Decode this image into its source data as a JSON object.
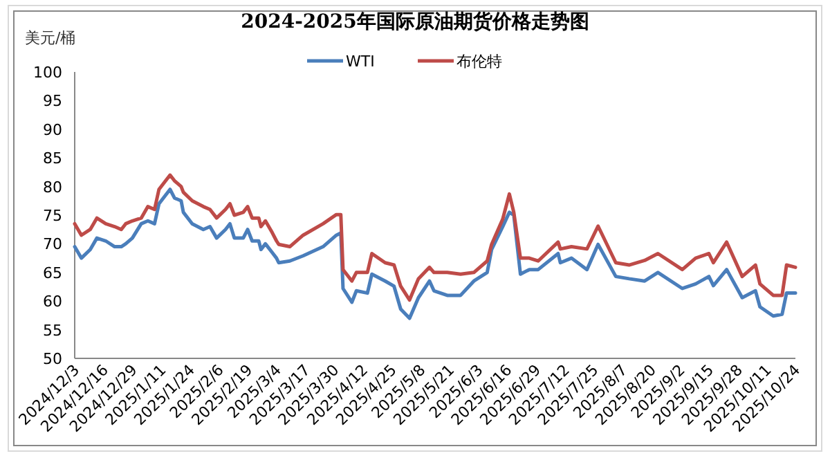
{
  "chart_data": {
    "type": "line",
    "title": "2024-2025年国际原油期货价格走势图",
    "ylabel": "美元/桶",
    "x": [
      "2024-12-03",
      "2024-12-06",
      "2024-12-10",
      "2024-12-13",
      "2024-12-17",
      "2024-12-21",
      "2024-12-24",
      "2024-12-26",
      "2024-12-29",
      "2025-01-02",
      "2025-01-05",
      "2025-01-08",
      "2025-01-10",
      "2025-01-13",
      "2025-01-15",
      "2025-01-17",
      "2025-01-20",
      "2025-01-21",
      "2025-01-25",
      "2025-01-30",
      "2025-02-02",
      "2025-02-05",
      "2025-02-09",
      "2025-02-11",
      "2025-02-13",
      "2025-02-17",
      "2025-02-19",
      "2025-02-21",
      "2025-02-24",
      "2025-02-25",
      "2025-02-27",
      "2025-03-02",
      "2025-03-04",
      "2025-03-05",
      "2025-03-10",
      "2025-03-16",
      "2025-03-25",
      "2025-03-31",
      "2025-04-02",
      "2025-04-03",
      "2025-04-07",
      "2025-04-09",
      "2025-04-14",
      "2025-04-16",
      "2025-04-22",
      "2025-04-26",
      "2025-04-29",
      "2025-05-03",
      "2025-05-07",
      "2025-05-12",
      "2025-05-14",
      "2025-05-20",
      "2025-05-26",
      "2025-06-01",
      "2025-06-07",
      "2025-06-09",
      "2025-06-14",
      "2025-06-17",
      "2025-06-19",
      "2025-06-22",
      "2025-06-26",
      "2025-06-30",
      "2025-07-09",
      "2025-07-10",
      "2025-07-15",
      "2025-07-22",
      "2025-07-27",
      "2025-08-04",
      "2025-08-10",
      "2025-08-17",
      "2025-08-23",
      "2025-09-03",
      "2025-09-09",
      "2025-09-15",
      "2025-09-17",
      "2025-09-23",
      "2025-09-30",
      "2025-10-06",
      "2025-10-08",
      "2025-10-14",
      "2025-10-18",
      "2025-10-20",
      "2025-10-24"
    ],
    "series": [
      {
        "name": "WTI",
        "color": "#4a7ebb",
        "values": [
          69.5,
          67.5,
          69,
          71,
          70.5,
          69.5,
          69.5,
          70,
          71,
          73.5,
          74,
          73.5,
          77,
          78.5,
          79.5,
          78,
          77.5,
          75.5,
          73.5,
          72.5,
          73,
          71,
          72.5,
          73.5,
          71,
          71,
          72.5,
          70.5,
          70.5,
          69,
          70,
          68.5,
          67.5,
          66.7,
          67,
          67.9,
          69.5,
          71.5,
          71.9,
          62.2,
          59.8,
          61.8,
          61.4,
          64.7,
          63.5,
          62.6,
          58.6,
          57,
          60.6,
          63.5,
          61.8,
          61,
          61,
          63.5,
          65,
          69,
          73,
          75.5,
          75,
          64.7,
          65.5,
          65.5,
          68.3,
          66.7,
          67.5,
          65.5,
          69.9,
          64.3,
          63.9,
          63.5,
          65,
          62.2,
          63,
          64.3,
          62.7,
          65.5,
          60.6,
          61.8,
          59,
          57.4,
          57.7,
          61.4,
          61.4
        ]
      },
      {
        "name": "布伦特",
        "color": "#be4b48",
        "values": [
          73.5,
          71.5,
          72.5,
          74.5,
          73.5,
          73,
          72.5,
          73.5,
          74,
          74.5,
          76.5,
          76,
          79.5,
          81,
          82,
          81,
          80,
          79,
          77.5,
          76.5,
          76,
          74.5,
          76,
          77,
          75,
          75.5,
          76.5,
          74.5,
          74.5,
          73,
          74,
          72,
          70.5,
          69.9,
          69.5,
          71.5,
          73.5,
          75.1,
          75.1,
          65.5,
          63.5,
          65,
          65,
          68.3,
          66.7,
          66.3,
          62.6,
          60.2,
          63.9,
          65.9,
          65,
          65,
          64.7,
          65,
          67,
          69.9,
          74.3,
          78.7,
          75.5,
          67.5,
          67.5,
          67,
          70.3,
          69.1,
          69.5,
          69.1,
          73.1,
          66.7,
          66.3,
          67.1,
          68.3,
          65.5,
          67.5,
          68.3,
          66.7,
          70.3,
          64.3,
          66.3,
          63,
          61,
          61,
          66.3,
          65.9
        ]
      }
    ],
    "xlim": [
      "2024-12-03",
      "2025-10-24"
    ],
    "xticks": [
      {
        "value": "2024-12-03",
        "label": "2024/12/3"
      },
      {
        "value": "2024-12-16",
        "label": "2024/12/16"
      },
      {
        "value": "2024-12-29",
        "label": "2024/12/29"
      },
      {
        "value": "2025-01-11",
        "label": "2025/1/11"
      },
      {
        "value": "2025-01-24",
        "label": "2025/1/24"
      },
      {
        "value": "2025-02-06",
        "label": "2025/2/6"
      },
      {
        "value": "2025-02-19",
        "label": "2025/2/19"
      },
      {
        "value": "2025-03-04",
        "label": "2025/3/4"
      },
      {
        "value": "2025-03-17",
        "label": "2025/3/17"
      },
      {
        "value": "2025-03-30",
        "label": "2025/3/30"
      },
      {
        "value": "2025-04-12",
        "label": "2025/4/12"
      },
      {
        "value": "2025-04-25",
        "label": "2025/4/25"
      },
      {
        "value": "2025-05-08",
        "label": "2025/5/8"
      },
      {
        "value": "2025-05-21",
        "label": "2025/5/21"
      },
      {
        "value": "2025-06-03",
        "label": "2025/6/3"
      },
      {
        "value": "2025-06-16",
        "label": "2025/6/16"
      },
      {
        "value": "2025-06-29",
        "label": "2025/6/29"
      },
      {
        "value": "2025-07-12",
        "label": "2025/7/12"
      },
      {
        "value": "2025-07-25",
        "label": "2025/7/25"
      },
      {
        "value": "2025-08-07",
        "label": "2025/8/7"
      },
      {
        "value": "2025-08-20",
        "label": "2025/8/20"
      },
      {
        "value": "2025-09-02",
        "label": "2025/9/2"
      },
      {
        "value": "2025-09-15",
        "label": "2025/9/15"
      },
      {
        "value": "2025-09-28",
        "label": "2025/9/28"
      },
      {
        "value": "2025-10-11",
        "label": "2025/10/11"
      },
      {
        "value": "2025-10-24",
        "label": "2025/10/24"
      }
    ],
    "ylim": [
      50,
      100
    ],
    "yticks": [
      50,
      55,
      60,
      65,
      70,
      75,
      80,
      85,
      90,
      95,
      100
    ],
    "legend": "top",
    "marker": "none",
    "line_style": "solid"
  }
}
